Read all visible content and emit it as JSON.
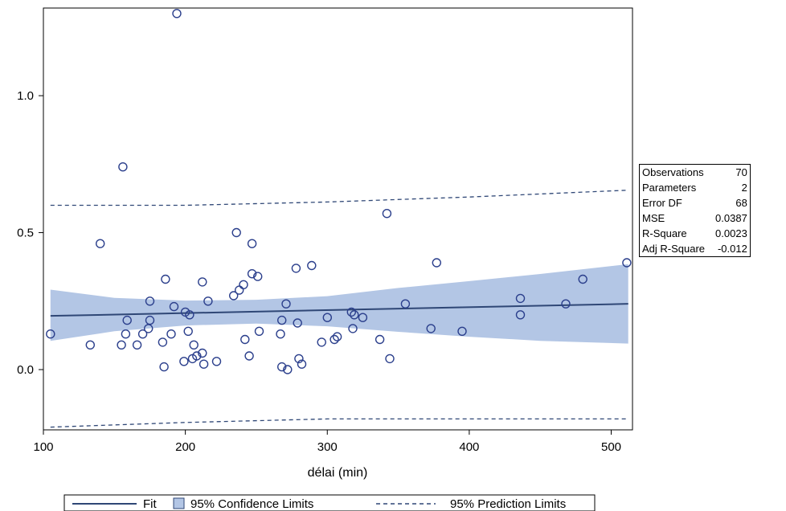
{
  "chart_data": {
    "type": "scatter",
    "title": "",
    "xlabel": "délai (min)",
    "ylabel": "",
    "xlim": [
      100,
      515
    ],
    "ylim": [
      -0.22,
      1.32
    ],
    "x_ticks": [
      100,
      200,
      300,
      400,
      500
    ],
    "y_ticks": [
      0.0,
      0.5,
      1.0
    ],
    "x_tick_labels": [
      "100",
      "200",
      "300",
      "400",
      "500"
    ],
    "y_tick_labels": [
      "0.0",
      "0.5",
      "1.0"
    ],
    "points": [
      [
        105,
        0.13
      ],
      [
        133,
        0.09
      ],
      [
        140,
        0.46
      ],
      [
        155,
        0.09
      ],
      [
        156,
        0.74
      ],
      [
        158,
        0.13
      ],
      [
        159,
        0.18
      ],
      [
        166,
        0.09
      ],
      [
        170,
        0.13
      ],
      [
        174,
        0.15
      ],
      [
        175,
        0.18
      ],
      [
        175,
        0.25
      ],
      [
        184,
        0.1
      ],
      [
        185,
        0.01
      ],
      [
        186,
        0.33
      ],
      [
        190,
        0.13
      ],
      [
        192,
        0.23
      ],
      [
        194,
        1.3
      ],
      [
        199,
        0.03
      ],
      [
        200,
        0.21
      ],
      [
        202,
        0.14
      ],
      [
        203,
        0.2
      ],
      [
        205,
        0.04
      ],
      [
        206,
        0.09
      ],
      [
        208,
        0.05
      ],
      [
        212,
        0.06
      ],
      [
        212,
        0.32
      ],
      [
        213,
        0.02
      ],
      [
        216,
        0.25
      ],
      [
        222,
        0.03
      ],
      [
        234,
        0.27
      ],
      [
        236,
        0.5
      ],
      [
        238,
        0.29
      ],
      [
        241,
        0.31
      ],
      [
        242,
        0.11
      ],
      [
        245,
        0.05
      ],
      [
        247,
        0.46
      ],
      [
        247,
        0.35
      ],
      [
        251,
        0.34
      ],
      [
        252,
        0.14
      ],
      [
        267,
        0.13
      ],
      [
        268,
        0.18
      ],
      [
        268,
        0.01
      ],
      [
        271,
        0.24
      ],
      [
        272,
        0.0
      ],
      [
        278,
        0.37
      ],
      [
        279,
        0.17
      ],
      [
        280,
        0.04
      ],
      [
        282,
        0.02
      ],
      [
        289,
        0.38
      ],
      [
        296,
        0.1
      ],
      [
        300,
        0.19
      ],
      [
        305,
        0.11
      ],
      [
        307,
        0.12
      ],
      [
        317,
        0.21
      ],
      [
        318,
        0.15
      ],
      [
        319,
        0.2
      ],
      [
        325,
        0.19
      ],
      [
        337,
        0.11
      ],
      [
        342,
        0.57
      ],
      [
        344,
        0.04
      ],
      [
        355,
        0.24
      ],
      [
        373,
        0.15
      ],
      [
        377,
        0.39
      ],
      [
        395,
        0.14
      ],
      [
        436,
        0.2
      ],
      [
        436,
        0.26
      ],
      [
        468,
        0.24
      ],
      [
        480,
        0.33
      ],
      [
        511,
        0.39
      ]
    ],
    "fit": {
      "x": [
        105,
        512
      ],
      "y": [
        0.196,
        0.24
      ]
    },
    "confidence_limits": {
      "x": [
        105,
        150,
        200,
        250,
        300,
        350,
        400,
        450,
        512
      ],
      "lower": [
        0.105,
        0.14,
        0.161,
        0.168,
        0.158,
        0.138,
        0.12,
        0.105,
        0.095
      ],
      "upper": [
        0.292,
        0.262,
        0.252,
        0.255,
        0.268,
        0.298,
        0.323,
        0.349,
        0.385
      ]
    },
    "prediction_limits": {
      "x": [
        105,
        200,
        300,
        400,
        512
      ],
      "lower": [
        -0.21,
        -0.193,
        -0.18,
        -0.18,
        -0.18
      ],
      "upper": [
        0.6,
        0.6,
        0.612,
        0.63,
        0.655
      ]
    },
    "legend": {
      "position": "bottom",
      "entries": [
        "Fit",
        "95% Confidence Limits",
        "95% Prediction Limits"
      ]
    },
    "colors": {
      "fit": "#2f4776",
      "band": "#b3c6e5",
      "marker": "#2b3f8c",
      "prediction": "#2f4776"
    }
  },
  "stats": [
    {
      "label": "Observations",
      "value": "70"
    },
    {
      "label": "Parameters",
      "value": "2"
    },
    {
      "label": "Error DF",
      "value": "68"
    },
    {
      "label": "MSE",
      "value": "0.0387"
    },
    {
      "label": "R-Square",
      "value": "0.0023"
    },
    {
      "label": "Adj R-Square",
      "value": "-0.012"
    }
  ]
}
